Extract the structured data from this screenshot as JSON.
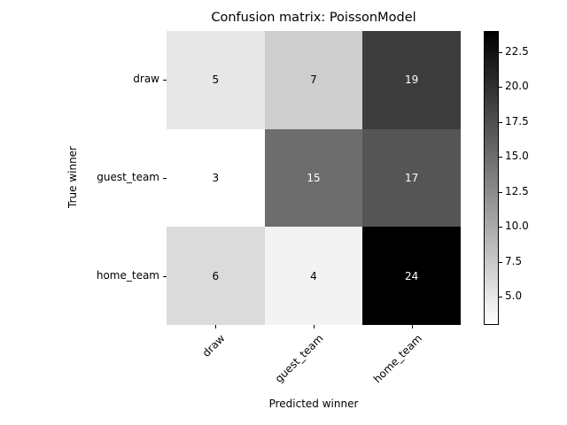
{
  "chart_data": {
    "type": "heatmap",
    "title": "Confusion matrix: PoissonModel",
    "xlabel": "Predicted winner",
    "ylabel": "True winner",
    "x_categories": [
      "draw",
      "guest_team",
      "home_team"
    ],
    "y_categories": [
      "draw",
      "guest_team",
      "home_team"
    ],
    "values": [
      [
        5,
        7,
        19
      ],
      [
        3,
        15,
        17
      ],
      [
        6,
        4,
        24
      ]
    ],
    "colormap": "Greys",
    "vmin": 3,
    "vmax": 24,
    "colorbar": {
      "ticks": [
        "5.0",
        "7.5",
        "10.0",
        "12.5",
        "15.0",
        "17.5",
        "20.0",
        "22.5"
      ],
      "tick_values": [
        5.0,
        7.5,
        10.0,
        12.5,
        15.0,
        17.5,
        20.0,
        22.5
      ]
    },
    "grid": false,
    "x_tick_rotation": 45
  }
}
